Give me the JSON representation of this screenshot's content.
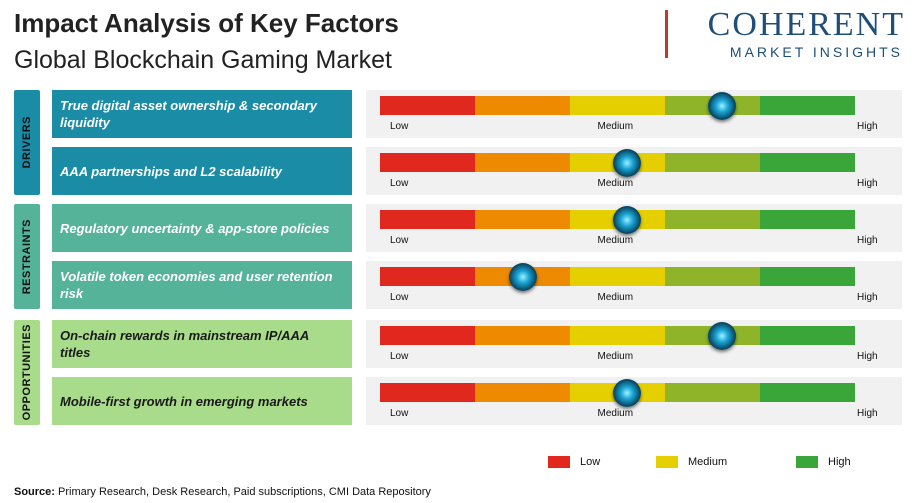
{
  "header": {
    "title": "Impact Analysis of Key Factors",
    "subtitle": "Global Blockchain Gaming Market"
  },
  "logo": {
    "main": "COHERENT",
    "sub": "MARKET INSIGHTS"
  },
  "colors": {
    "low": "#e0281e",
    "low_mid": "#ee8a00",
    "medium": "#e6cf00",
    "mid_high": "#8fb42a",
    "high": "#3aa63a",
    "drivers": "#1b8ca6",
    "restraints": "#55b39a",
    "opportunities": "#a9dc8a"
  },
  "chart_data": {
    "type": "table",
    "scale": {
      "min": 0,
      "max": 5,
      "labels": [
        "Low",
        "Medium",
        "High"
      ]
    },
    "groups": [
      {
        "name": "DRIVERS",
        "factors": [
          {
            "label": "True digital asset ownership & secondary liquidity",
            "impact": 3.6
          },
          {
            "label": "AAA partnerships and L2 scalability",
            "impact": 2.6
          }
        ]
      },
      {
        "name": "RESTRAINTS",
        "factors": [
          {
            "label": "Regulatory uncertainty & app-store policies",
            "impact": 2.6
          },
          {
            "label": "Volatile token economies and user retention risk",
            "impact": 1.5
          }
        ]
      },
      {
        "name": "OPPORTUNITIES",
        "factors": [
          {
            "label": "On-chain rewards in mainstream IP/AAA titles",
            "impact": 3.6
          },
          {
            "label": "Mobile-first growth in emerging markets",
            "impact": 2.6
          }
        ]
      }
    ],
    "legend": [
      {
        "label": "Low",
        "color": "#e0281e"
      },
      {
        "label": "Medium",
        "color": "#e6cf00"
      },
      {
        "label": "High",
        "color": "#3aa63a"
      }
    ]
  },
  "footer": {
    "source_label": "Source:",
    "source_text": " Primary Research, Desk Research, Paid subscriptions, CMI Data Repository"
  }
}
